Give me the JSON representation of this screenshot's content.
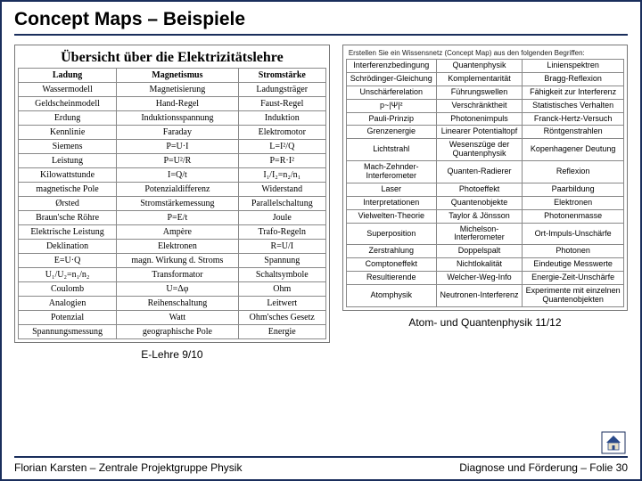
{
  "title": "Concept Maps – Beispiele",
  "left": {
    "panelTitle": "Übersicht über die Elektrizitätslehre",
    "headers": [
      "Ladung",
      "Magnetismus",
      "Stromstärke"
    ],
    "rows": [
      [
        "Wassermodell",
        "Magnetisierung",
        "Ladungsträger"
      ],
      [
        "Geldscheinmodell",
        "Hand-Regel",
        "Faust-Regel"
      ],
      [
        "Erdung",
        "Induktionsspannung",
        "Induktion"
      ],
      [
        "Kennlinie",
        "Faraday",
        "Elektromotor"
      ],
      [
        "Siemens",
        "P=U·I",
        "L=I²/Q"
      ],
      [
        "Leistung",
        "P=U²/R",
        "P=R·I²"
      ],
      [
        "Kilowattstunde",
        "I=Q/t",
        "I₁/I₂=n₂/n₁"
      ],
      [
        "magnetische Pole",
        "Potenzialdifferenz",
        "Widerstand"
      ],
      [
        "Ørsted",
        "Stromstärkemessung",
        "Parallelschaltung"
      ],
      [
        "Braun'sche Röhre",
        "P=E/t",
        "Joule"
      ],
      [
        "Elektrische Leistung",
        "Ampère",
        "Trafo-Regeln"
      ],
      [
        "Deklination",
        "Elektronen",
        "R=U/I"
      ],
      [
        "E=U·Q",
        "magn. Wirkung d. Stroms",
        "Spannung"
      ],
      [
        "U₁/U₂=n₁/n₂",
        "Transformator",
        "Schaltsymbole"
      ],
      [
        "Coulomb",
        "U=Δφ",
        "Ohm"
      ],
      [
        "Analogien",
        "Reihenschaltung",
        "Leitwert"
      ],
      [
        "Potenzial",
        "Watt",
        "Ohm'sches Gesetz"
      ],
      [
        "Spannungsmessung",
        "geographische Pole",
        "Energie"
      ]
    ],
    "caption": "E-Lehre 9/10"
  },
  "right": {
    "panelSubtitle": "Erstellen Sie ein Wissensnetz (Concept Map) aus den folgenden Begriffen:",
    "rows": [
      [
        "Interferenzbedingung",
        "Quantenphysik",
        "Linienspektren"
      ],
      [
        "Schrödinger-Gleichung",
        "Komplementarität",
        "Bragg-Reflexion"
      ],
      [
        "Unschärferelation",
        "Führungswellen",
        "Fähigkeit zur Interferenz"
      ],
      [
        "p~|Ψ|²",
        "Verschränktheit",
        "Statistisches Verhalten"
      ],
      [
        "Pauli-Prinzip",
        "Photonenimpuls",
        "Franck-Hertz-Versuch"
      ],
      [
        "Grenzenergie",
        "Linearer Potentialtopf",
        "Röntgenstrahlen"
      ],
      [
        "Lichtstrahl",
        "Wesenszüge der Quantenphysik",
        "Kopenhagener Deutung"
      ],
      [
        "Mach-Zehnder-Interferometer",
        "Quanten-Radierer",
        "Reflexion"
      ],
      [
        "Laser",
        "Photoeffekt",
        "Paarbildung"
      ],
      [
        "Interpretationen",
        "Quantenobjekte",
        "Elektronen"
      ],
      [
        "Vielwelten-Theorie",
        "Taylor & Jönsson",
        "Photonenmasse"
      ],
      [
        "Superposition",
        "Michelson-Interferometer",
        "Ort-Impuls-Unschärfe"
      ],
      [
        "Zerstrahlung",
        "Doppelspalt",
        "Photonen"
      ],
      [
        "Comptoneffekt",
        "Nichtlokalität",
        "Eindeutige Messwerte"
      ],
      [
        "Resultierende",
        "Welcher-Weg-Info",
        "Energie-Zeit-Unschärfe"
      ],
      [
        "Atomphysik",
        "Neutronen-Interferenz",
        "Experimente mit einzelnen Quantenobjekten"
      ]
    ],
    "caption": "Atom- und Quantenphysik 11/12"
  },
  "footer": {
    "left": "Florian Karsten – Zentrale Projektgruppe Physik",
    "right": "Diagnose und Förderung – Folie 30"
  },
  "colors": {
    "border": "#1a2e5c",
    "homeRoof": "#2a4a8a",
    "homeWall": "#e8e0c8"
  }
}
